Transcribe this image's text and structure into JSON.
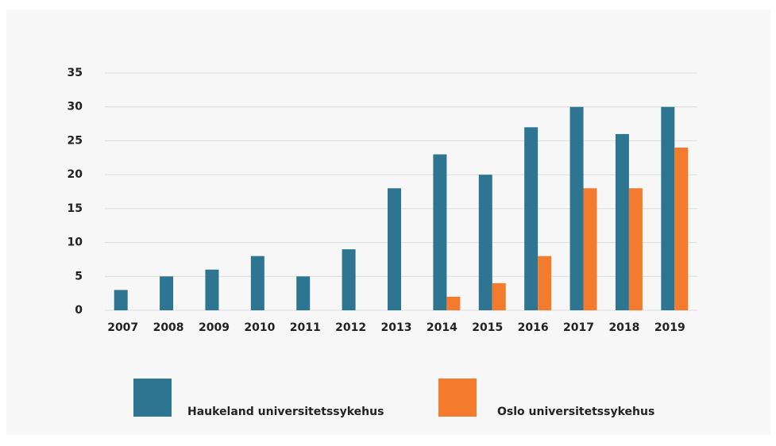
{
  "chart_data": {
    "type": "bar",
    "categories": [
      "2007",
      "2008",
      "2009",
      "2010",
      "2011",
      "2012",
      "2013",
      "2014",
      "2015",
      "2016",
      "2017",
      "2018",
      "2019"
    ],
    "series": [
      {
        "name": "Haukeland universitetssykehus",
        "color": "#2e7591",
        "values": [
          3,
          5,
          6,
          8,
          5,
          9,
          18,
          23,
          20,
          27,
          30,
          26,
          30
        ]
      },
      {
        "name": "Oslo universitetssykehus",
        "color": "#f47a2e",
        "values": [
          0,
          0,
          0,
          0,
          0,
          0,
          0,
          2,
          4,
          8,
          18,
          18,
          24
        ]
      }
    ],
    "ylim": [
      0,
      35
    ],
    "yticks": [
      0,
      5,
      10,
      15,
      20,
      25,
      30,
      35
    ],
    "grid": true,
    "legend": "bottom"
  }
}
